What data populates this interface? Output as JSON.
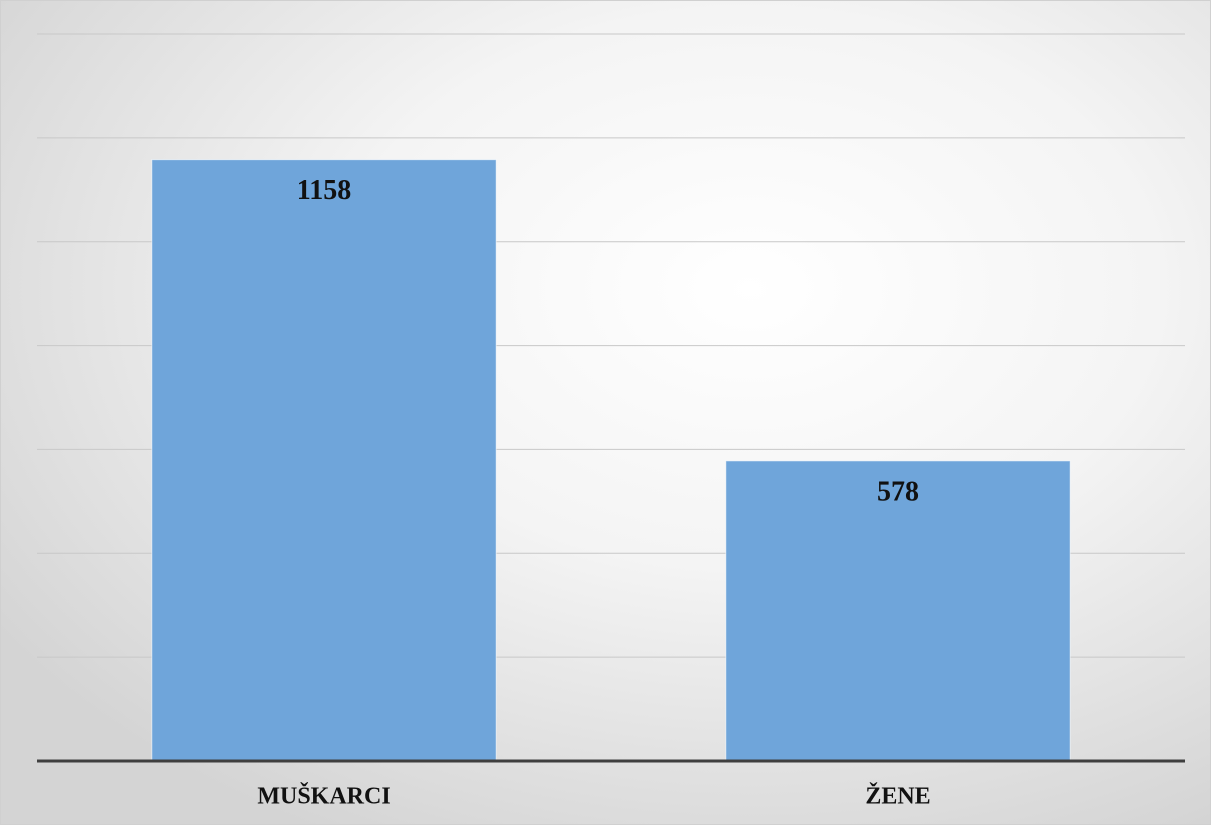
{
  "chart_data": {
    "type": "bar",
    "categories": [
      "MUŠKARCI",
      "ŽENE"
    ],
    "values": [
      1158,
      578
    ],
    "color": "#6fa5da",
    "ylim": [
      0,
      1400
    ],
    "yticks": [
      0,
      200,
      400,
      600,
      800,
      1000,
      1200,
      1400
    ],
    "grid": true
  }
}
